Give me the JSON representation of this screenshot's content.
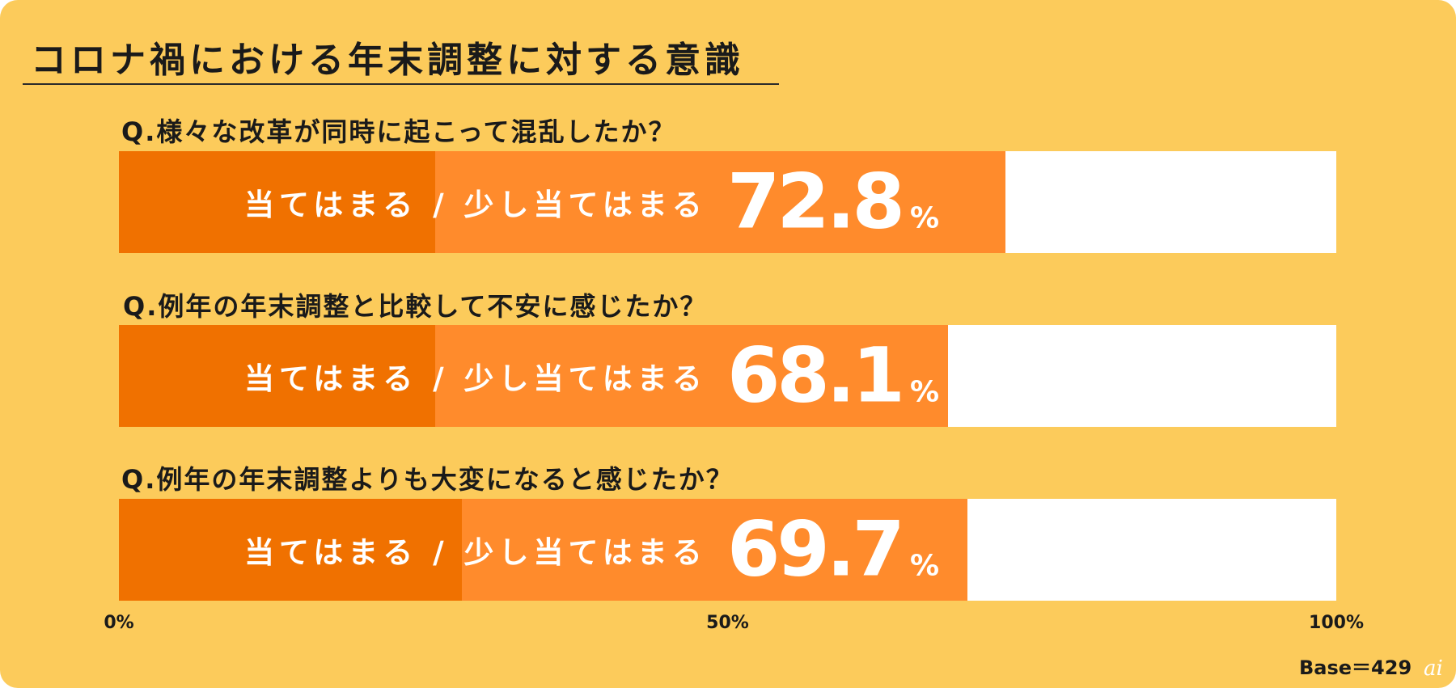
{
  "title": "コロナ禍における年末調整に対する意識",
  "chart_data": {
    "type": "bar",
    "orientation": "horizontal",
    "stacked": true,
    "xlim": [
      0,
      100
    ],
    "ticks": [
      "0%",
      "50%",
      "100%"
    ],
    "base": "Base＝429",
    "watermark": "ai",
    "rows": [
      {
        "question": "Q.様々な改革が同時に起こって混乱したか？",
        "label": "当てはまる / 少し当てはまる",
        "value_text": "72.8",
        "unit": "%",
        "agree": 26.0,
        "somewhat": 46.8
      },
      {
        "question": "Q.例年の年末調整と比較して不安に感じたか？",
        "label": "当てはまる / 少し当てはまる",
        "value_text": "68.1",
        "unit": "%",
        "agree": 26.0,
        "somewhat": 42.1
      },
      {
        "question": "Q.例年の年末調整よりも大変になると感じたか？",
        "label": "当てはまる / 少し当てはまる",
        "value_text": "69.7",
        "unit": "%",
        "agree": 28.2,
        "somewhat": 41.5
      }
    ],
    "colors": {
      "agree": "#f07100",
      "somewhat": "#ff8b2c",
      "remainder": "#ffffff",
      "background": "#fccb5b"
    }
  }
}
